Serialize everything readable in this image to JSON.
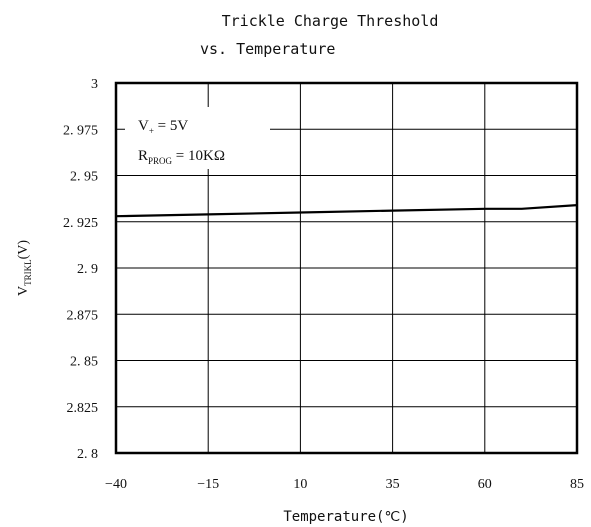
{
  "chart_data": {
    "type": "line",
    "title_line1": "Trickle Charge Threshold",
    "title_line2": "vs. Temperature",
    "xlabel": "Temperature(℃)",
    "ylabel_main": "V",
    "ylabel_sub": "TRIKL",
    "ylabel_unit": "(V)",
    "xlim": [
      -40,
      85
    ],
    "ylim": [
      2.8,
      3.0
    ],
    "x_ticks": [
      -40,
      -15,
      10,
      35,
      60,
      85
    ],
    "x_tick_labels": [
      "−40",
      "−15",
      "10",
      "35",
      "60",
      "85"
    ],
    "y_ticks": [
      2.8,
      2.825,
      2.85,
      2.875,
      2.9,
      2.925,
      2.95,
      2.975,
      3.0
    ],
    "y_tick_labels": [
      "2. 8",
      "2.825",
      "2. 85",
      "2.875",
      "2. 9",
      "2. 925",
      "2. 95",
      "2. 975",
      "3"
    ],
    "grid": true,
    "annotation": {
      "line1_main": "V",
      "line1_sub": "+",
      "line1_rest": " = 5V",
      "line2_main": "R",
      "line2_sub": "PROG",
      "line2_rest": " = 10KΩ"
    },
    "series": [
      {
        "color": "#000000",
        "x": [
          -40,
          -15,
          10,
          35,
          60,
          70,
          85
        ],
        "y": [
          2.928,
          2.929,
          2.93,
          2.931,
          2.932,
          2.932,
          2.934
        ]
      }
    ]
  }
}
